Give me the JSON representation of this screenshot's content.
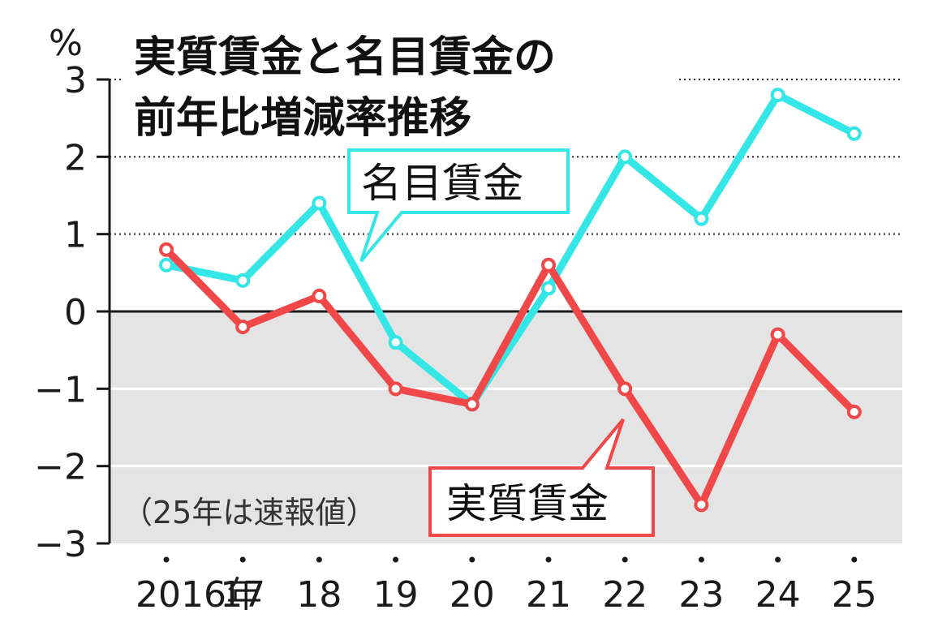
{
  "chart_data": {
    "type": "line",
    "title": "実質賃金と名目賃金の前年比増減率推移",
    "title_lines": [
      "実質賃金と名目賃金の",
      "前年比増減率推移"
    ],
    "ylabel": "%",
    "xlabel": "",
    "categories": [
      "2016年",
      "17",
      "18",
      "19",
      "20",
      "21",
      "22",
      "23",
      "24",
      "25"
    ],
    "yticks": [
      3,
      2,
      1,
      0,
      -1,
      -2,
      -3
    ],
    "ytick_labels": [
      "3",
      "2",
      "1",
      "0",
      "−1",
      "−2",
      "−3"
    ],
    "ylim": [
      -3,
      3
    ],
    "grid": "dotted lines at positive values, white lines in shaded negative region",
    "negative_region_fill": "#e4e4e4",
    "series": [
      {
        "name": "名目賃金",
        "color": "#35e6e6",
        "values": [
          0.6,
          0.4,
          1.4,
          -0.4,
          -1.2,
          0.3,
          2.0,
          1.2,
          2.8,
          2.3
        ]
      },
      {
        "name": "実質賃金",
        "color": "#f04848",
        "values": [
          0.8,
          -0.2,
          0.2,
          -1.0,
          -1.2,
          0.6,
          -1.0,
          -2.5,
          -0.3,
          -1.3
        ]
      }
    ],
    "note": "（25年は速報値）"
  }
}
